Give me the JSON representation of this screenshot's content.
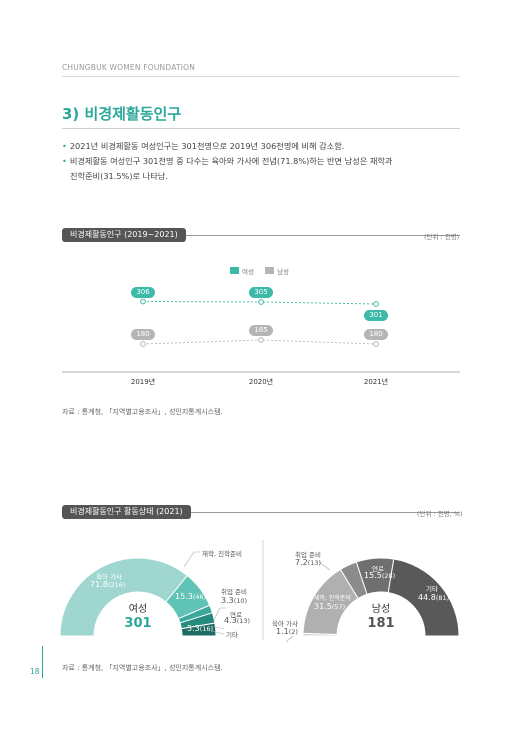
{
  "header": {
    "org": "CHUNGBUK WOMEN FOUNDATION"
  },
  "section": {
    "title": "3) 비경제활동인구",
    "bullets": [
      "2021년 비경제활동 여성인구는 301천명으로 2019년 306천명에 비해 감소함.",
      "비경제활동 여성인구 301천명 중 다수는 육아와 가사에 전념(71.8%)하는 반면 남성은 재학과",
      "진학준비(31.5%)로 나타남."
    ]
  },
  "chart1": {
    "label_main": "비경제활동인구",
    "label_sub": "(2019~2021)",
    "unit": "(단위 : 천명)",
    "source": "자료 : 통계청, 「지역별고용조사」, 성인지통계시스템.",
    "colors": {
      "female": "#3cb9a8",
      "male": "#b5b5b5"
    }
  },
  "chart_data": [
    {
      "type": "line",
      "x": [
        "2019년",
        "2020년",
        "2021년"
      ],
      "series": [
        {
          "name": "여성",
          "values": [
            306,
            305,
            301
          ]
        },
        {
          "name": "남성",
          "values": [
            180,
            185,
            180
          ]
        }
      ],
      "legend": "top-center",
      "grid": false
    },
    {
      "type": "pie",
      "title": "여성",
      "total": "301",
      "slices": [
        {
          "label": "육아 가사",
          "value": "71.8",
          "count": "(216)"
        },
        {
          "label": "재학, 진학준비",
          "value": "15.3",
          "count": "(46)"
        },
        {
          "label": "취업 준비",
          "value": "3.3",
          "count": "(10)"
        },
        {
          "label": "연로",
          "value": "4.3",
          "count": "(13)"
        },
        {
          "label": "기타",
          "value": "5.3",
          "count": "(16)"
        }
      ]
    },
    {
      "type": "pie",
      "title": "남성",
      "total": "181",
      "slices": [
        {
          "label": "육아 가사",
          "value": "1.1",
          "count": "(2)"
        },
        {
          "label": "재학, 진학준비",
          "value": "31.5",
          "count": "(57)"
        },
        {
          "label": "취업 준비",
          "value": "7.2",
          "count": "(13)"
        },
        {
          "label": "연로",
          "value": "15.5",
          "count": "(28)"
        },
        {
          "label": "기타",
          "value": "44.8",
          "count": "(81)"
        }
      ]
    }
  ],
  "chart2": {
    "label_main": "비경제활동인구 활동상태",
    "label_sub": "(2021)",
    "unit": "(단위 : 천명, %)",
    "source": "자료 : 통계청, 「지역별고용조사」, 성인지통계시스템."
  },
  "footer": {
    "page": "18"
  }
}
